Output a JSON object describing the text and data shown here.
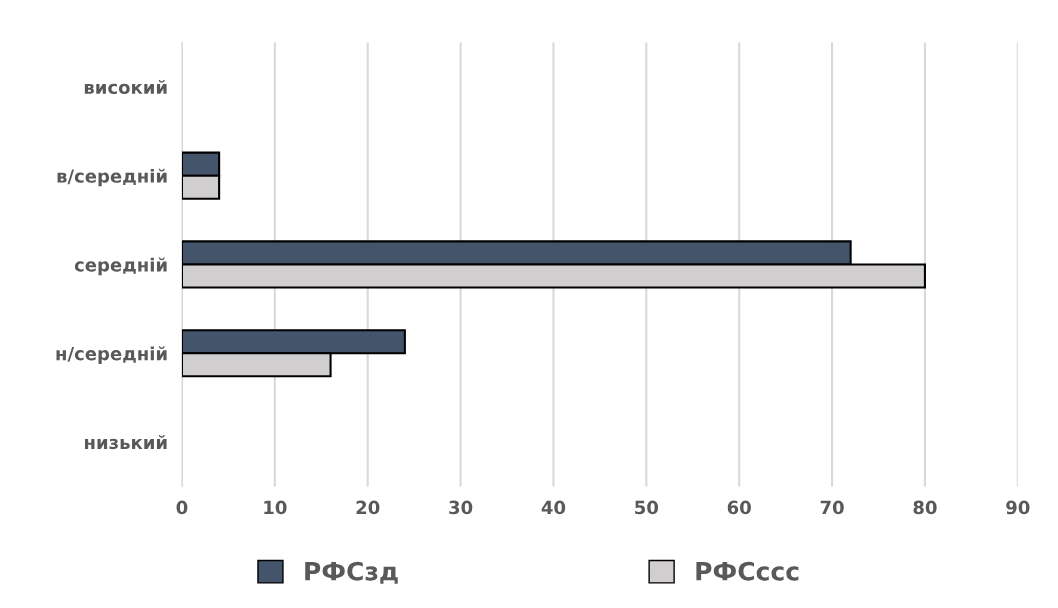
{
  "chart_data": {
    "type": "bar",
    "orientation": "horizontal",
    "categories": [
      "високий",
      "в/середній",
      "середній",
      "н/середній",
      "низький"
    ],
    "series": [
      {
        "name": "РФСзд",
        "color": "#44546a",
        "values": [
          null,
          4,
          72,
          24,
          null
        ]
      },
      {
        "name": "РФСссс",
        "color": "#d0cece",
        "values": [
          null,
          4,
          80,
          16,
          null
        ]
      }
    ],
    "xlim": [
      0,
      90
    ],
    "xticks": [
      0,
      10,
      20,
      30,
      40,
      50,
      60,
      70,
      80,
      90
    ],
    "grid": "x",
    "legend": "bottom"
  }
}
